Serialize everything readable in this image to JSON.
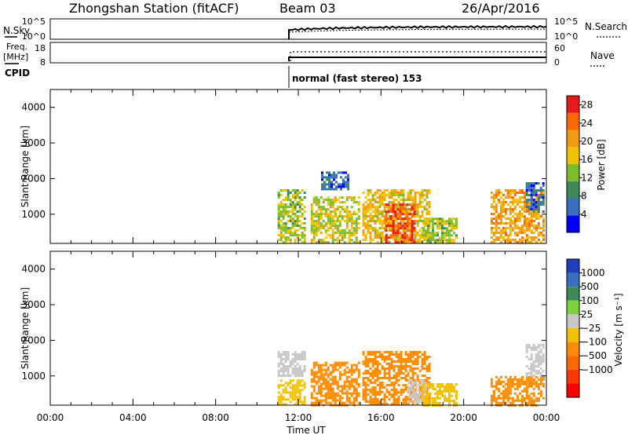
{
  "header": {
    "station": "Zhongshan Station (fitACF)",
    "beam": "Beam 03",
    "date": "26/Apr/2016"
  },
  "top_panels": {
    "nsky_label": "N.Sky",
    "nsearch_label": "N.Search",
    "nsky_ticks": [
      "10^5",
      "10^0"
    ],
    "nsearch_ticks": [
      "10^5",
      "10^0"
    ],
    "freq_label": "Freq.",
    "freq_unit": "[MHz]",
    "freq_ticks": [
      "18",
      "8"
    ],
    "nave_label": "Nave",
    "nave_ticks": [
      "60",
      "0"
    ],
    "cpid_label": "CPID",
    "cpid_text": "normal (fast stereo) 153"
  },
  "chart_data": [
    {
      "type": "heatmap",
      "panel": "power",
      "ylabel": "Slant Range [km]",
      "yticks": [
        "1000",
        "2000",
        "3000",
        "4000"
      ],
      "ylim": [
        180,
        4500
      ],
      "xlim": [
        0,
        24
      ],
      "colorbar": {
        "label": "Power [dB]",
        "ticks": [
          "4",
          "8",
          "12",
          "16",
          "20",
          "24",
          "28"
        ],
        "range": [
          0,
          30
        ],
        "colors": [
          "#0000ff",
          "#3a6fbf",
          "#3d8a5a",
          "#7bbd2a",
          "#f2c200",
          "#f39c12",
          "#ff6a00",
          "#e61a1a"
        ]
      },
      "blobs": [
        {
          "t0": 11.0,
          "t1": 12.3,
          "r0": 180,
          "r1": 1700,
          "v": 14
        },
        {
          "t0": 12.6,
          "t1": 14.9,
          "r0": 180,
          "r1": 1500,
          "v": 16
        },
        {
          "t0": 13.1,
          "t1": 14.4,
          "r0": 1700,
          "r1": 2200,
          "v": 6
        },
        {
          "t0": 15.1,
          "t1": 18.3,
          "r0": 180,
          "r1": 1700,
          "v": 18
        },
        {
          "t0": 16.2,
          "t1": 17.6,
          "r0": 180,
          "r1": 1300,
          "v": 26
        },
        {
          "t0": 18.0,
          "t1": 19.6,
          "r0": 180,
          "r1": 900,
          "v": 14
        },
        {
          "t0": 21.3,
          "t1": 23.9,
          "r0": 180,
          "r1": 1700,
          "v": 20
        },
        {
          "t0": 23.0,
          "t1": 23.9,
          "r0": 1100,
          "r1": 1900,
          "v": 6
        }
      ]
    },
    {
      "type": "heatmap",
      "panel": "velocity",
      "ylabel": "Slant Range [km]",
      "yticks": [
        "1000",
        "2000",
        "3000",
        "4000"
      ],
      "ylim": [
        180,
        4500
      ],
      "xlim": [
        0,
        24
      ],
      "xticks": [
        "00:00",
        "04:00",
        "08:00",
        "12:00",
        "16:00",
        "20:00",
        "00:00"
      ],
      "xlabel": "Time UT",
      "colorbar": {
        "label": "Velocity [m s⁻¹]",
        "ticks": [
          "1000",
          "500",
          "100",
          "25",
          "−25",
          "−100",
          "−500",
          "−1000"
        ],
        "colors": [
          "#1f3fbf",
          "#3a6fbf",
          "#3d8a5a",
          "#7bd23b",
          "#c8c8c8",
          "#f2c200",
          "#ff8c00",
          "#ff6a00",
          "#ff3a00",
          "#ff0000"
        ]
      },
      "blobs": [
        {
          "t0": 11.0,
          "t1": 12.3,
          "r0": 180,
          "r1": 900,
          "v": -60
        },
        {
          "t0": 11.0,
          "t1": 12.3,
          "r0": 1000,
          "r1": 1700,
          "v": 0
        },
        {
          "t0": 12.6,
          "t1": 14.9,
          "r0": 180,
          "r1": 1400,
          "v": -300
        },
        {
          "t0": 15.1,
          "t1": 18.3,
          "r0": 180,
          "r1": 1700,
          "v": -300
        },
        {
          "t0": 17.3,
          "t1": 18.2,
          "r0": 180,
          "r1": 900,
          "v": 0
        },
        {
          "t0": 18.0,
          "t1": 19.6,
          "r0": 180,
          "r1": 800,
          "v": -60
        },
        {
          "t0": 21.3,
          "t1": 23.9,
          "r0": 180,
          "r1": 1000,
          "v": -300
        },
        {
          "t0": 23.0,
          "t1": 23.9,
          "r0": 1000,
          "r1": 1900,
          "v": 0
        }
      ]
    }
  ]
}
